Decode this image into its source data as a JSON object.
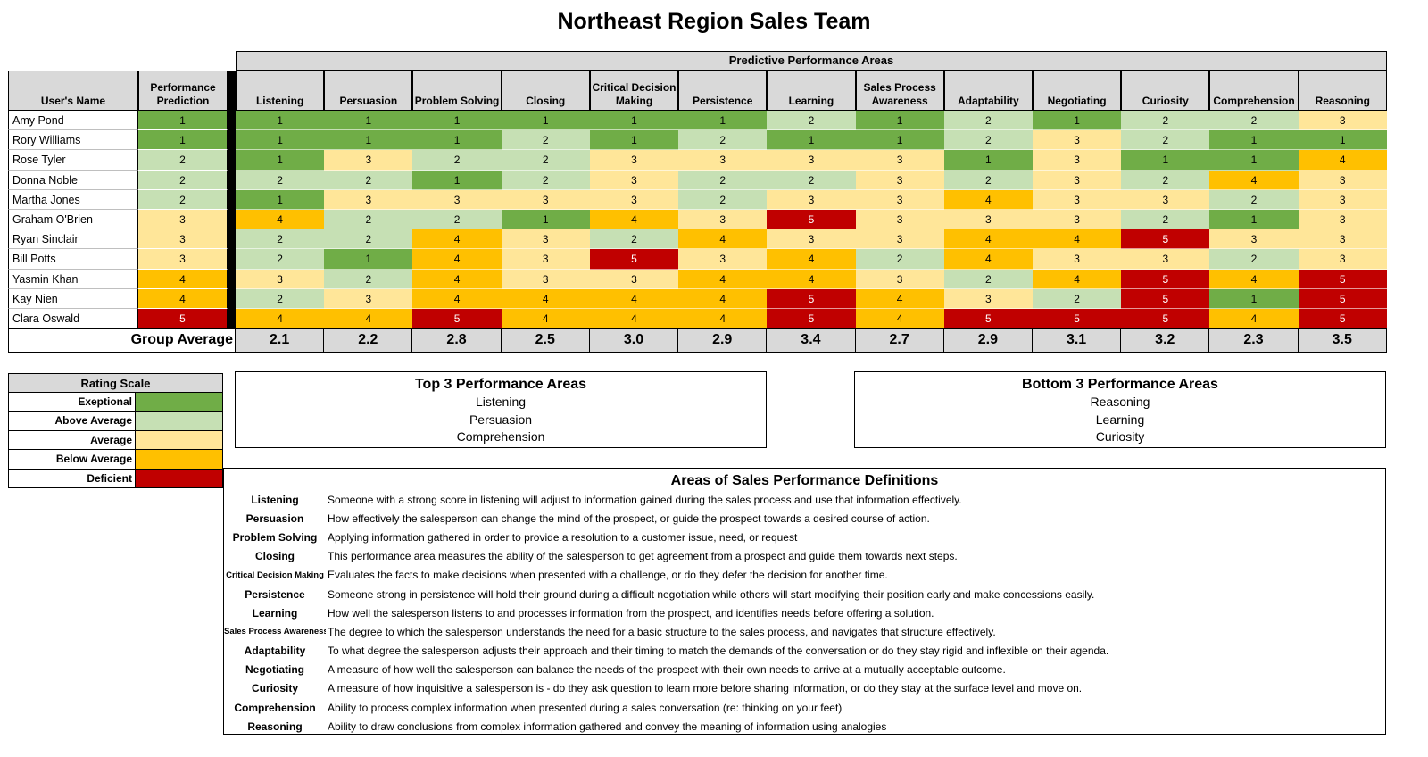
{
  "title": "Northeast Region Sales Team",
  "headers": {
    "user_name": "User's Name",
    "prediction": "Performance Prediction",
    "areas_title": "Predictive Performance Areas"
  },
  "areas": [
    "Listening",
    "Persuasion",
    "Problem Solving",
    "Closing",
    "Critical Decision Making",
    "Persistence",
    "Learning",
    "Sales Process Awareness",
    "Adaptability",
    "Negotiating",
    "Curiosity",
    "Comprehension",
    "Reasoning"
  ],
  "users": [
    {
      "name": "Amy Pond",
      "prediction": 1,
      "scores": [
        1,
        1,
        1,
        1,
        1,
        1,
        2,
        1,
        2,
        1,
        2,
        2,
        3
      ]
    },
    {
      "name": "Rory Williams",
      "prediction": 1,
      "scores": [
        1,
        1,
        1,
        2,
        1,
        2,
        1,
        1,
        2,
        3,
        2,
        1,
        1
      ]
    },
    {
      "name": "Rose Tyler",
      "prediction": 2,
      "scores": [
        1,
        3,
        2,
        2,
        3,
        3,
        3,
        3,
        1,
        3,
        1,
        1,
        4
      ]
    },
    {
      "name": "Donna Noble",
      "prediction": 2,
      "scores": [
        2,
        2,
        1,
        2,
        3,
        2,
        2,
        3,
        2,
        3,
        2,
        4,
        3
      ]
    },
    {
      "name": "Martha Jones",
      "prediction": 2,
      "scores": [
        1,
        3,
        3,
        3,
        3,
        2,
        3,
        3,
        4,
        3,
        3,
        2,
        3
      ]
    },
    {
      "name": "Graham O'Brien",
      "prediction": 3,
      "scores": [
        4,
        2,
        2,
        1,
        4,
        3,
        5,
        3,
        3,
        3,
        2,
        1,
        3
      ]
    },
    {
      "name": "Ryan Sinclair",
      "prediction": 3,
      "scores": [
        2,
        2,
        4,
        3,
        2,
        4,
        3,
        3,
        4,
        4,
        5,
        3,
        3
      ]
    },
    {
      "name": "Bill Potts",
      "prediction": 3,
      "scores": [
        2,
        1,
        4,
        3,
        5,
        3,
        4,
        2,
        4,
        3,
        3,
        2,
        3
      ]
    },
    {
      "name": "Yasmin Khan",
      "prediction": 4,
      "scores": [
        3,
        2,
        4,
        3,
        3,
        4,
        4,
        3,
        2,
        4,
        5,
        4,
        5
      ]
    },
    {
      "name": "Kay Nien",
      "prediction": 4,
      "scores": [
        2,
        3,
        4,
        4,
        4,
        4,
        5,
        4,
        3,
        2,
        5,
        1,
        5
      ]
    },
    {
      "name": "Clara Oswald",
      "prediction": 5,
      "scores": [
        4,
        4,
        5,
        4,
        4,
        4,
        5,
        4,
        5,
        5,
        5,
        4,
        5
      ]
    }
  ],
  "group_average": {
    "label": "Group Average",
    "values": [
      "2.1",
      "2.2",
      "2.8",
      "2.5",
      "3.0",
      "2.9",
      "3.4",
      "2.7",
      "2.9",
      "3.1",
      "3.2",
      "2.3",
      "3.5"
    ]
  },
  "rating_scale": {
    "title": "Rating Scale",
    "levels": [
      {
        "label": "Exeptional",
        "color": "#70ad47"
      },
      {
        "label": "Above Average",
        "color": "#c6e0b4"
      },
      {
        "label": "Average",
        "color": "#ffe699"
      },
      {
        "label": "Below Average",
        "color": "#ffc000"
      },
      {
        "label": "Deficient",
        "color": "#c00000"
      }
    ]
  },
  "top3": {
    "title": "Top 3 Performance Areas",
    "items": [
      "Listening",
      "Persuasion",
      "Comprehension"
    ]
  },
  "bottom3": {
    "title": "Bottom 3 Performance Areas",
    "items": [
      "Reasoning",
      "Learning",
      "Curiosity"
    ]
  },
  "definitions": {
    "title": "Areas of Sales Performance Definitions",
    "items": [
      {
        "term": "Listening",
        "text": "Someone with a strong score in listening will adjust to information gained during the sales process and use that information effectively."
      },
      {
        "term": "Persuasion",
        "text": "How effectively the salesperson can change the mind of the prospect, or guide the prospect towards a desired course of action."
      },
      {
        "term": "Problem Solving",
        "text": "Applying information gathered in order to provide a resolution to a customer issue, need, or request"
      },
      {
        "term": "Closing",
        "text": "This performance area measures the ability of the salesperson to get agreement from a prospect and guide them towards next steps."
      },
      {
        "term": "Critical Decision Making",
        "text": "Evaluates the facts to make decisions when presented with a challenge, or do they defer the decision for another time."
      },
      {
        "term": "Persistence",
        "text": "Someone strong in persistence will hold their ground during a difficult negotiation while others will start modifying their position early and make concessions easily."
      },
      {
        "term": "Learning",
        "text": "How well the salesperson listens to and processes information from the prospect, and identifies needs before offering a solution."
      },
      {
        "term": "Sales Process Awareness",
        "text": "The degree to which the salesperson understands the need for a basic structure to the sales process, and navigates that structure effectively."
      },
      {
        "term": "Adaptability",
        "text": "To what degree the salesperson adjusts their approach and their timing to match the demands of the conversation or do they stay rigid and inflexible on their agenda."
      },
      {
        "term": "Negotiating",
        "text": "A measure of how well the salesperson can balance the needs of the prospect with their own needs to arrive at a mutually acceptable outcome."
      },
      {
        "term": "Curiosity",
        "text": "A measure of how inquisitive a salesperson is - do they ask question to learn more before sharing information, or do they stay at the surface level and move on."
      },
      {
        "term": "Comprehension",
        "text": "Ability to process complex information when presented during a sales conversation (re: thinking on your feet)"
      },
      {
        "term": "Reasoning",
        "text": "Ability to draw conclusions from complex information gathered and convey the meaning of information using analogies"
      }
    ]
  }
}
